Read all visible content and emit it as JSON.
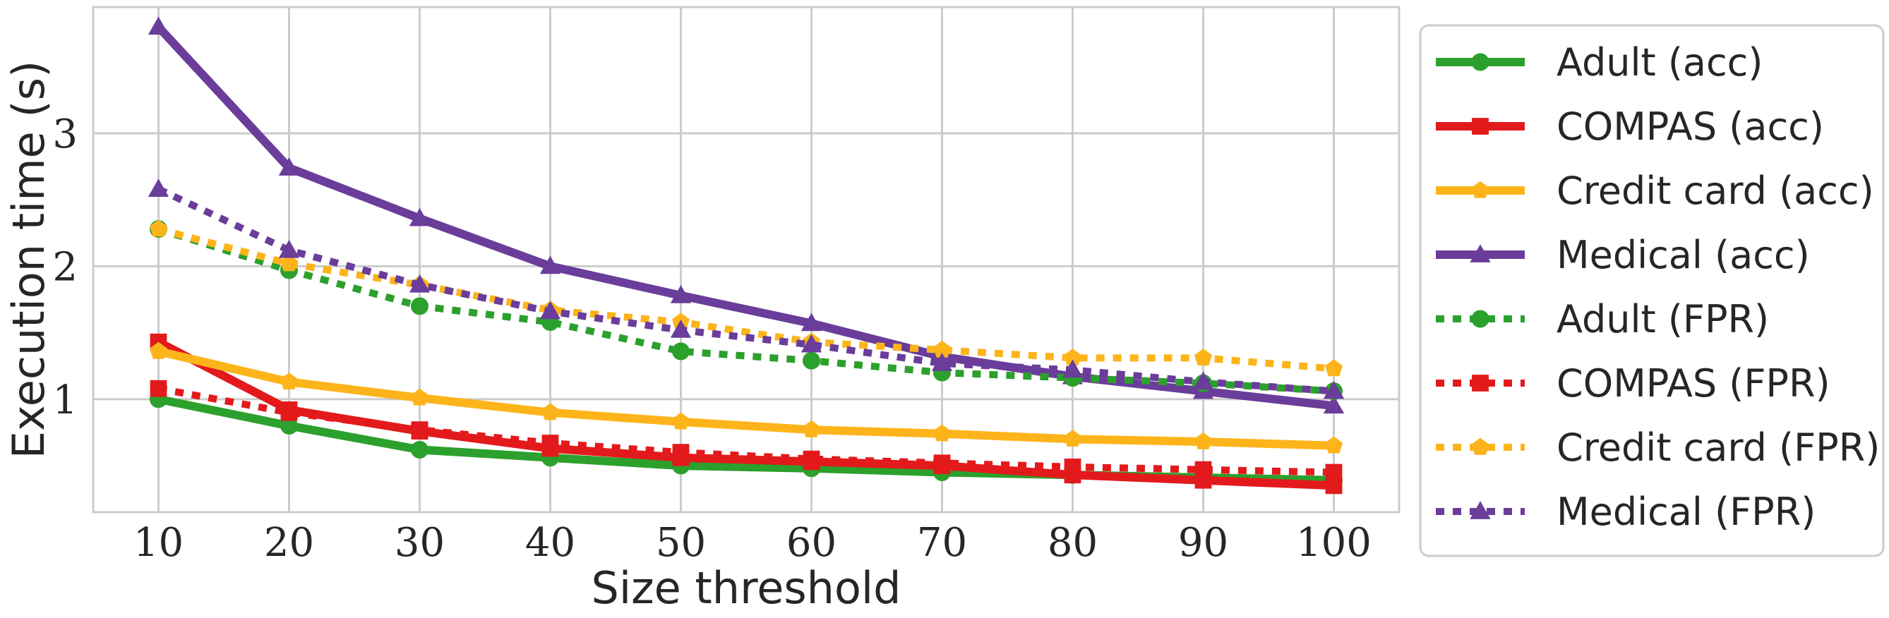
{
  "chart_data": {
    "type": "line",
    "title": "",
    "xlabel": "Size threshold",
    "ylabel": "Execution time (s)",
    "x": [
      10,
      20,
      30,
      40,
      50,
      60,
      70,
      80,
      90,
      100
    ],
    "xlim": [
      5,
      105
    ],
    "ylim": [
      0.15,
      3.95
    ],
    "yticks": [
      1,
      2,
      3
    ],
    "grid": true,
    "legend_position": "right-outside",
    "series": [
      {
        "name": "Adult (acc)",
        "color": "#2ca02c",
        "style": "solid",
        "marker": "circle",
        "values": [
          1.0,
          0.8,
          0.62,
          0.56,
          0.5,
          0.48,
          0.45,
          0.43,
          0.41,
          0.39
        ]
      },
      {
        "name": "COMPAS (acc)",
        "color": "#e31a1c",
        "style": "solid",
        "marker": "square",
        "values": [
          1.43,
          0.92,
          0.76,
          0.63,
          0.56,
          0.53,
          0.5,
          0.43,
          0.39,
          0.35
        ]
      },
      {
        "name": "Credit card (acc)",
        "color": "#fdb41b",
        "style": "solid",
        "marker": "pentagon",
        "values": [
          1.36,
          1.13,
          1.01,
          0.9,
          0.83,
          0.77,
          0.74,
          0.7,
          0.68,
          0.65
        ]
      },
      {
        "name": "Medical (acc)",
        "color": "#6a3d9a",
        "style": "solid",
        "marker": "triangle",
        "values": [
          3.8,
          2.74,
          2.36,
          2.0,
          1.78,
          1.57,
          1.32,
          1.17,
          1.06,
          0.95
        ]
      },
      {
        "name": "Adult (FPR)",
        "color": "#2ca02c",
        "style": "dotted",
        "marker": "circle",
        "values": [
          2.28,
          1.97,
          1.7,
          1.58,
          1.36,
          1.29,
          1.2,
          1.16,
          1.12,
          1.06
        ]
      },
      {
        "name": "COMPAS (FPR)",
        "color": "#e31a1c",
        "style": "dotted",
        "marker": "square",
        "values": [
          1.08,
          0.9,
          0.77,
          0.67,
          0.6,
          0.55,
          0.52,
          0.49,
          0.47,
          0.45
        ]
      },
      {
        "name": "Credit card (FPR)",
        "color": "#fdb41b",
        "style": "dotted",
        "marker": "pentagon",
        "values": [
          2.28,
          2.02,
          1.86,
          1.67,
          1.58,
          1.43,
          1.37,
          1.31,
          1.31,
          1.23
        ]
      },
      {
        "name": "Medical (FPR)",
        "color": "#6a3d9a",
        "style": "dotted",
        "marker": "triangle",
        "values": [
          2.58,
          2.12,
          1.86,
          1.66,
          1.52,
          1.41,
          1.27,
          1.22,
          1.13,
          1.06
        ]
      }
    ]
  }
}
